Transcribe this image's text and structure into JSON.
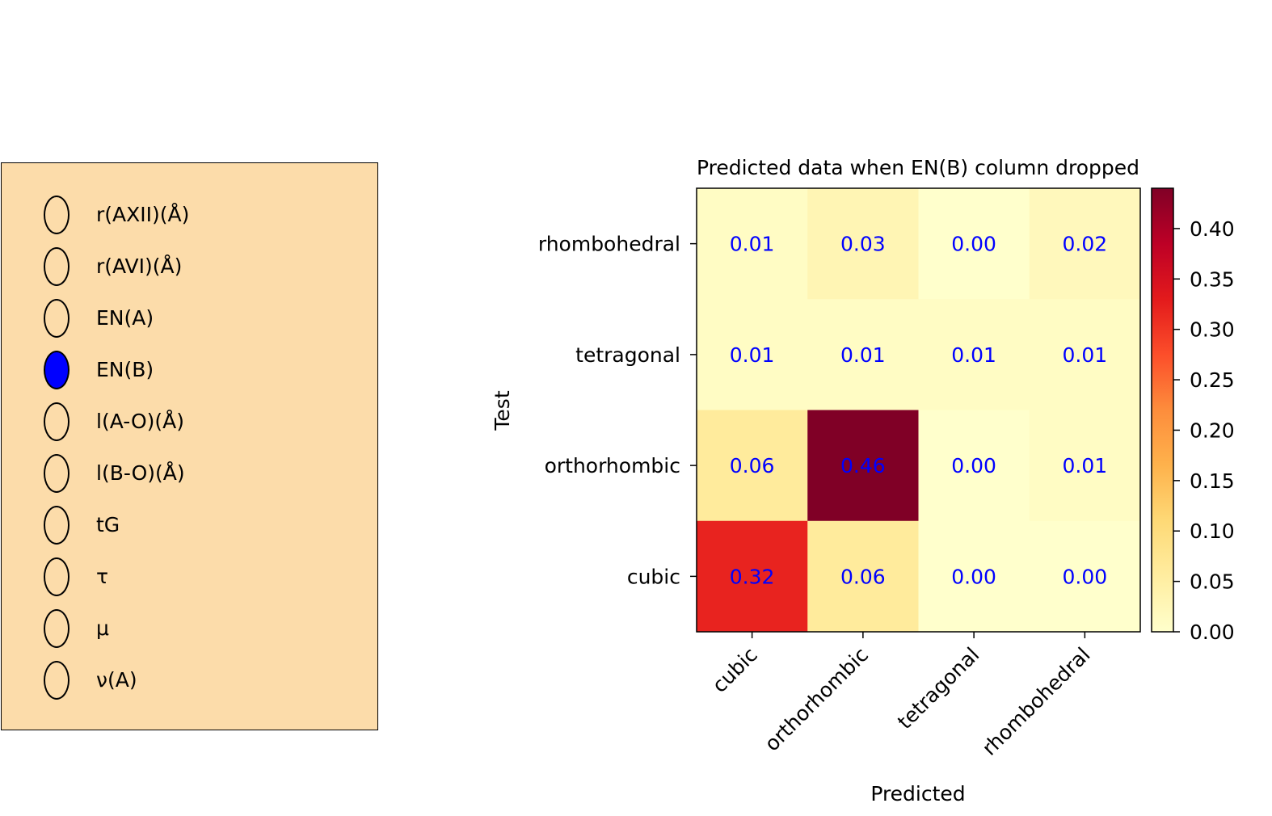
{
  "radio_panel": {
    "selected_index": 3,
    "selected_color": "#0000ff",
    "background_color": "#fcdcaa",
    "options": [
      "r(AXII)(Å)",
      "r(AVI)(Å)",
      "EN(A)",
      "EN(B)",
      "l(A-O)(Å)",
      "l(B-O)(Å)",
      "tG",
      "τ",
      "μ",
      "ν(A)"
    ]
  },
  "chart_data": {
    "type": "heatmap",
    "title": "Predicted data when EN(B) column dropped",
    "xlabel": "Predicted",
    "ylabel": "Test",
    "x_categories": [
      "cubic",
      "orthorhombic",
      "tetragonal",
      "rhombohedral"
    ],
    "y_categories": [
      "rhombohedral",
      "tetragonal",
      "orthorhombic",
      "cubic"
    ],
    "values": [
      [
        0.01,
        0.03,
        0.0,
        0.02
      ],
      [
        0.01,
        0.01,
        0.01,
        0.01
      ],
      [
        0.06,
        0.46,
        0.0,
        0.01
      ],
      [
        0.32,
        0.06,
        0.0,
        0.0
      ]
    ],
    "value_labels": [
      [
        "0.01",
        "0.03",
        "0.00",
        "0.02"
      ],
      [
        "0.01",
        "0.01",
        "0.01",
        "0.01"
      ],
      [
        "0.06",
        "0.46",
        "0.00",
        "0.01"
      ],
      [
        "0.32",
        "0.06",
        "0.00",
        "0.00"
      ]
    ],
    "annotation_color": "#0000ff",
    "colormap": "YlOrRd",
    "colorbar": {
      "range": [
        0,
        0.44
      ],
      "ticks": [
        0,
        0.05,
        0.1,
        0.15,
        0.2,
        0.25,
        0.3,
        0.35,
        0.4
      ],
      "tick_labels": [
        "0.00",
        "0.05",
        "0.10",
        "0.15",
        "0.20",
        "0.25",
        "0.30",
        "0.35",
        "0.40"
      ]
    }
  }
}
